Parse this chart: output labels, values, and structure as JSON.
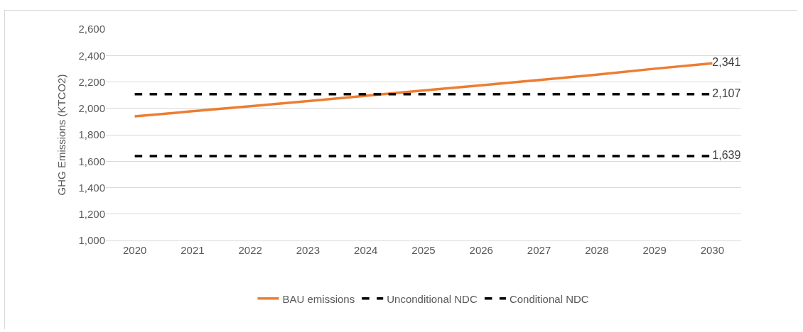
{
  "chart_data": {
    "type": "line",
    "ylabel": "GHG Emissions (KTCO2)",
    "categories": [
      "2020",
      "2021",
      "2022",
      "2023",
      "2024",
      "2025",
      "2026",
      "2027",
      "2028",
      "2029",
      "2030"
    ],
    "series": [
      {
        "name": "BAU emissions",
        "color": "#ed7d31",
        "line_style": "solid",
        "values": [
          1940,
          1978,
          2016,
          2055,
          2095,
          2135,
          2175,
          2215,
          2255,
          2300,
          2341
        ],
        "value_labels": [
          null,
          null,
          null,
          null,
          null,
          null,
          null,
          null,
          null,
          null,
          "2,341"
        ]
      },
      {
        "name": "Unconditional NDC",
        "color": "#000000",
        "line_style": "dashed",
        "values": [
          2107,
          2107,
          2107,
          2107,
          2107,
          2107,
          2107,
          2107,
          2107,
          2107,
          2107
        ],
        "value_labels": [
          null,
          null,
          null,
          null,
          null,
          null,
          null,
          null,
          null,
          null,
          "2,107"
        ]
      },
      {
        "name": "Conditional NDC",
        "color": "#000000",
        "line_style": "dashed",
        "values": [
          1639,
          1639,
          1639,
          1639,
          1639,
          1639,
          1639,
          1639,
          1639,
          1639,
          1639
        ],
        "value_labels": [
          null,
          null,
          null,
          null,
          null,
          null,
          null,
          null,
          null,
          null,
          "1,639"
        ]
      }
    ],
    "ylim": [
      1000,
      2600
    ],
    "yticks": [
      {
        "value": 1000,
        "label": "1,000"
      },
      {
        "value": 1200,
        "label": "1,200"
      },
      {
        "value": 1400,
        "label": "1,400"
      },
      {
        "value": 1600,
        "label": "1,600"
      },
      {
        "value": 1800,
        "label": "1,800"
      },
      {
        "value": 2000,
        "label": "2,000"
      },
      {
        "value": 2200,
        "label": "2,200"
      },
      {
        "value": 2400,
        "label": "2,400"
      },
      {
        "value": 2600,
        "label": "2,600"
      }
    ],
    "grid": "y",
    "legend": "bottom",
    "marker": "none"
  }
}
